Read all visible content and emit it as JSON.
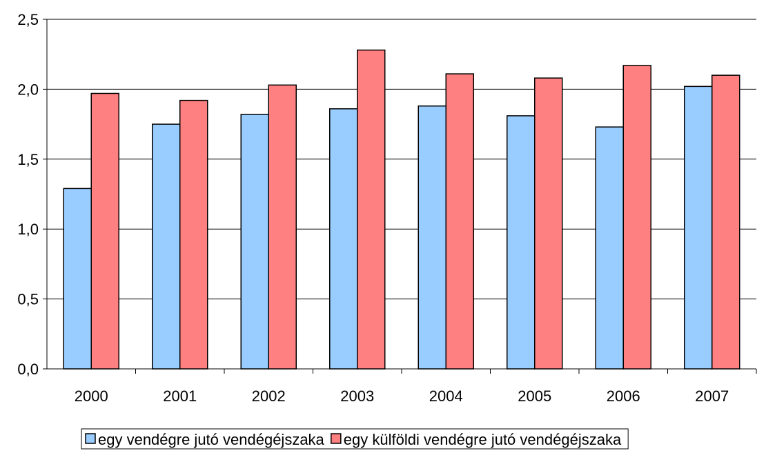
{
  "chart_data": {
    "type": "bar",
    "categories": [
      "2000",
      "2001",
      "2002",
      "2003",
      "2004",
      "2005",
      "2006",
      "2007"
    ],
    "series": [
      {
        "name": "egy vendégre jutó vendégéjszaka",
        "color": "#99ccff",
        "values": [
          1.29,
          1.75,
          1.82,
          1.86,
          1.88,
          1.81,
          1.73,
          2.02
        ]
      },
      {
        "name": "egy külföldi vendégre jutó vendégéjszaka",
        "color": "#ff8080",
        "values": [
          1.97,
          1.92,
          2.03,
          2.28,
          2.11,
          2.08,
          2.17,
          2.1
        ]
      }
    ],
    "ylim": [
      0,
      2.5
    ],
    "yticks": [
      {
        "value": 0,
        "label": "0,0"
      },
      {
        "value": 0.5,
        "label": "0,5"
      },
      {
        "value": 1,
        "label": "1,0"
      },
      {
        "value": 1.5,
        "label": "1,5"
      },
      {
        "value": 2,
        "label": "2,0"
      },
      {
        "value": 2.5,
        "label": "2,5"
      }
    ],
    "grid": true,
    "legend": "bottom"
  }
}
